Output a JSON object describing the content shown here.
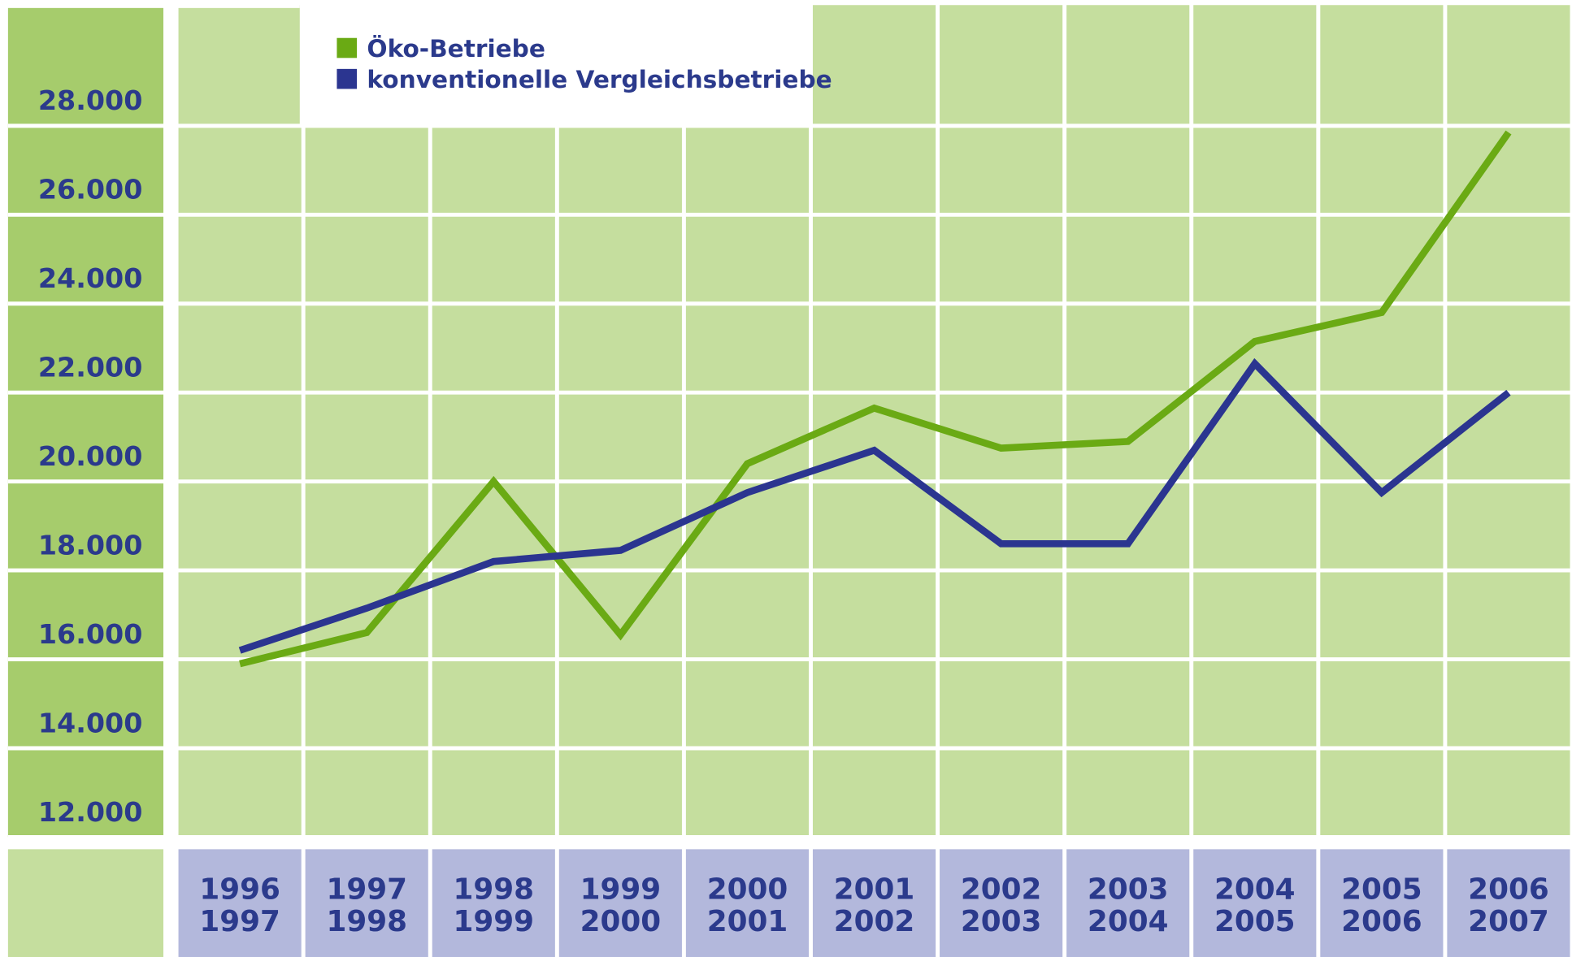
{
  "chart_data": {
    "type": "line",
    "categories": [
      [
        "1996",
        "1997"
      ],
      [
        "1997",
        "1998"
      ],
      [
        "1998",
        "1999"
      ],
      [
        "1999",
        "2000"
      ],
      [
        "2000",
        "2001"
      ],
      [
        "2001",
        "2002"
      ],
      [
        "2002",
        "2003"
      ],
      [
        "2003",
        "2004"
      ],
      [
        "2004",
        "2005"
      ],
      [
        "2005",
        "2006"
      ],
      [
        "2006",
        "2007"
      ]
    ],
    "series": [
      {
        "name": "Öko-Betriebe",
        "color": "#6aaa14",
        "values": [
          15900,
          16600,
          20000,
          16550,
          20400,
          21650,
          20750,
          20900,
          23150,
          23800,
          27850
        ]
      },
      {
        "name": "konventionelle Vergleichsbetriebe",
        "color": "#2b3590",
        "values": [
          16200,
          17150,
          18200,
          18450,
          19750,
          20700,
          18600,
          18600,
          22650,
          19750,
          22000
        ]
      }
    ],
    "ylim": [
      12000,
      30650
    ],
    "yticks": [
      {
        "value": 12000,
        "label": "12.000"
      },
      {
        "value": 14000,
        "label": "14.000"
      },
      {
        "value": 16000,
        "label": "16.000"
      },
      {
        "value": 18000,
        "label": "18.000"
      },
      {
        "value": 20000,
        "label": "20.000"
      },
      {
        "value": 22000,
        "label": "22.000"
      },
      {
        "value": 24000,
        "label": "24.000"
      },
      {
        "value": 26000,
        "label": "26.000"
      },
      {
        "value": 28000,
        "label": "28.000"
      }
    ],
    "grid": true,
    "legend": "top-left"
  }
}
